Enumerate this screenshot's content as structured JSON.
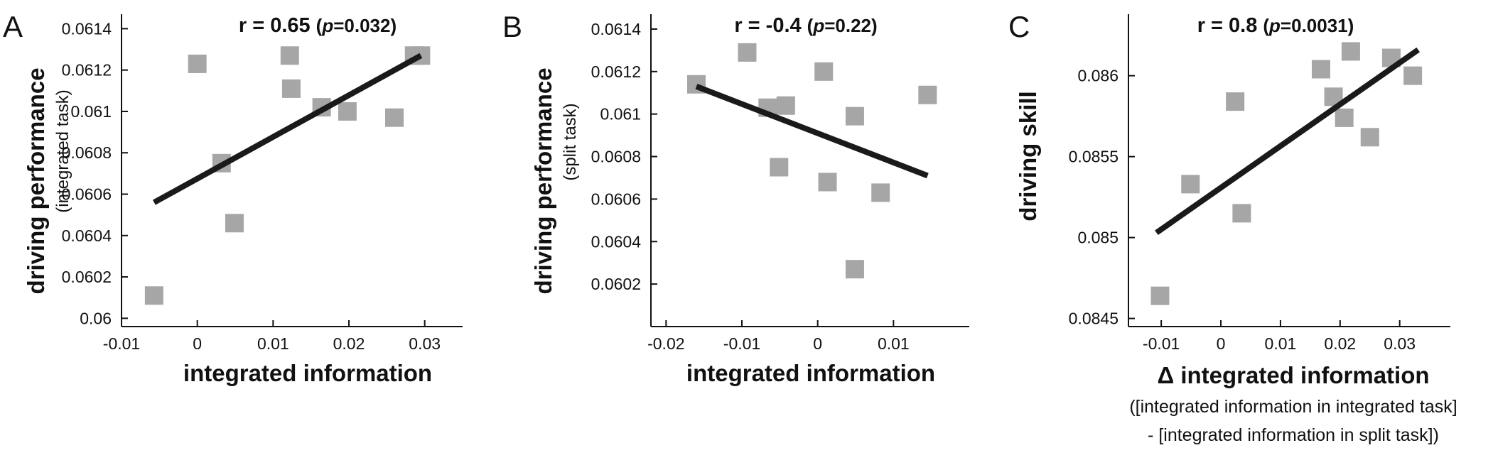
{
  "chart_data": [
    {
      "type": "scatter",
      "panel": "A",
      "title": {
        "main": "r = 0.65",
        "p_open": "(",
        "p_symbol": "p",
        "p_value": "=0.032)"
      },
      "ylabel": "driving performance",
      "ylabel_sub": "(integrated task)",
      "xlabel": "integrated information",
      "xlabel_sub": [],
      "xlim": [
        -0.01,
        0.035
      ],
      "ylim": [
        0.05996,
        0.06147
      ],
      "xticks": [
        -0.01,
        0,
        0.01,
        0.02,
        0.03
      ],
      "xtick_labels": [
        "-0.01",
        "0",
        "0.01",
        "0.02",
        "0.03"
      ],
      "yticks": [
        0.06,
        0.0602,
        0.0604,
        0.0606,
        0.0608,
        0.061,
        0.0612,
        0.0614
      ],
      "ytick_labels": [
        "0.06",
        "0.0602",
        "0.0604",
        "0.0606",
        "0.0608",
        "0.061",
        "0.0612",
        "0.0614"
      ],
      "points": [
        {
          "x": -0.0057,
          "y": 0.06011
        },
        {
          "x": 0.0,
          "y": 0.06123
        },
        {
          "x": 0.0032,
          "y": 0.06075
        },
        {
          "x": 0.0049,
          "y": 0.06046
        },
        {
          "x": 0.0122,
          "y": 0.06127
        },
        {
          "x": 0.0124,
          "y": 0.06111
        },
        {
          "x": 0.0164,
          "y": 0.06102
        },
        {
          "x": 0.0198,
          "y": 0.061
        },
        {
          "x": 0.026,
          "y": 0.06097
        },
        {
          "x": 0.0286,
          "y": 0.06127
        },
        {
          "x": 0.0295,
          "y": 0.06127
        }
      ],
      "fit_line": {
        "x": [
          -0.0057,
          0.0295
        ],
        "y": [
          0.06056,
          0.06127
        ]
      },
      "grid": false,
      "legend": "none"
    },
    {
      "type": "scatter",
      "panel": "B",
      "title": {
        "main": "r = -0.4",
        "p_open": "(",
        "p_symbol": "p",
        "p_value": "=0.22)"
      },
      "ylabel": "driving performance",
      "ylabel_sub": "(split task)",
      "xlabel": "integrated information",
      "xlabel_sub": [],
      "xlim": [
        -0.022,
        0.02
      ],
      "ylim": [
        0.06,
        0.06147
      ],
      "xticks": [
        -0.02,
        -0.01,
        0,
        0.01
      ],
      "xtick_labels": [
        "-0.02",
        "-0.01",
        "0",
        "0.01"
      ],
      "yticks": [
        0.0602,
        0.0604,
        0.0606,
        0.0608,
        0.061,
        0.0612,
        0.0614
      ],
      "ytick_labels": [
        "0.0602",
        "0.0604",
        "0.0606",
        "0.0608",
        "0.061",
        "0.0612",
        "0.0614"
      ],
      "points": [
        {
          "x": -0.016,
          "y": 0.06114
        },
        {
          "x": -0.0093,
          "y": 0.06129
        },
        {
          "x": -0.0066,
          "y": 0.06103
        },
        {
          "x": -0.0051,
          "y": 0.06075
        },
        {
          "x": -0.0042,
          "y": 0.06104
        },
        {
          "x": 0.0008,
          "y": 0.0612
        },
        {
          "x": 0.0013,
          "y": 0.06068
        },
        {
          "x": 0.0049,
          "y": 0.06099
        },
        {
          "x": 0.0049,
          "y": 0.06027
        },
        {
          "x": 0.0083,
          "y": 0.06063
        },
        {
          "x": 0.0145,
          "y": 0.06109
        }
      ],
      "fit_line": {
        "x": [
          -0.016,
          0.0145
        ],
        "y": [
          0.06113,
          0.06071
        ]
      },
      "grid": false,
      "legend": "none"
    },
    {
      "type": "scatter",
      "panel": "C",
      "title": {
        "main": "r = 0.8",
        "p_open": "(",
        "p_symbol": "p",
        "p_value": "=0.0031)"
      },
      "ylabel": "driving skill",
      "ylabel_sub": "",
      "xlabel": "Δ integrated information",
      "xlabel_sub": [
        "([integrated information in integrated task]",
        "- [integrated information in split task])"
      ],
      "xlim": [
        -0.0155,
        0.0385
      ],
      "ylim": [
        0.08445,
        0.08638
      ],
      "xticks": [
        -0.01,
        0,
        0.01,
        0.02,
        0.03
      ],
      "xtick_labels": [
        "-0.01",
        "0",
        "0.01",
        "0.02",
        "0.03"
      ],
      "yticks": [
        0.0845,
        0.085,
        0.0855,
        0.086
      ],
      "ytick_labels": [
        "0.0845",
        "0.085",
        "0.0855",
        "0.086"
      ],
      "points": [
        {
          "x": -0.0102,
          "y": 0.08464
        },
        {
          "x": -0.0051,
          "y": 0.08533
        },
        {
          "x": 0.0024,
          "y": 0.08584
        },
        {
          "x": 0.0035,
          "y": 0.08515
        },
        {
          "x": 0.0168,
          "y": 0.08604
        },
        {
          "x": 0.0189,
          "y": 0.08587
        },
        {
          "x": 0.0207,
          "y": 0.08574
        },
        {
          "x": 0.0218,
          "y": 0.08615
        },
        {
          "x": 0.025,
          "y": 0.08562
        },
        {
          "x": 0.0286,
          "y": 0.08611
        },
        {
          "x": 0.0322,
          "y": 0.086
        }
      ],
      "fit_line": {
        "x": [
          -0.0108,
          0.0331
        ],
        "y": [
          0.08503,
          0.08616
        ]
      },
      "grid": false,
      "legend": "none"
    }
  ],
  "colors": {
    "marker": "#a6a6a6",
    "fit_line": "#1a1a1a",
    "axis": "#111111",
    "text": "#111111"
  },
  "panel_letters": [
    "A",
    "B",
    "C"
  ]
}
